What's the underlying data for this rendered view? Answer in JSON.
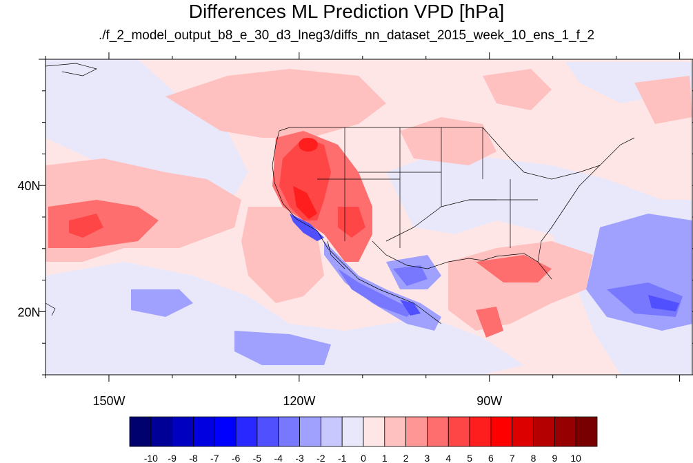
{
  "title": "Differences ML Prediction VPD [hPa]",
  "subtitle": "./f_2_model_output_b8_e_30_d3_lneg3/diffs_nn_dataset_2015_week_10_ens_1_f_2",
  "map": {
    "projection": "cylindrical-equidistant",
    "lon_range": [
      -160,
      -58
    ],
    "lat_range": [
      10,
      60
    ],
    "lon_ticks": [
      {
        "lon": -150,
        "label": "150W"
      },
      {
        "lon": -120,
        "label": "120W"
      },
      {
        "lon": -90,
        "label": "90W"
      }
    ],
    "lat_ticks": [
      {
        "lat": 40,
        "label": "40N"
      },
      {
        "lat": 20,
        "label": "20N"
      }
    ]
  },
  "colorbar": {
    "labels": [
      "-10",
      "-9",
      "-8",
      "-7",
      "-6",
      "-5",
      "-4",
      "-3",
      "-2",
      "-1",
      "0",
      "1",
      "2",
      "3",
      "4",
      "5",
      "6",
      "7",
      "8",
      "9",
      "10"
    ],
    "colors": [
      "#00006e",
      "#000096",
      "#0000c0",
      "#0000e0",
      "#0000ff",
      "#2828ff",
      "#5050ff",
      "#7878ff",
      "#a0a0ff",
      "#c8c8ff",
      "#e8e8fa",
      "#ffe6e6",
      "#ffc0c0",
      "#ff9696",
      "#ff6e6e",
      "#ff4646",
      "#ff1e1e",
      "#ff0000",
      "#dc0000",
      "#b40000",
      "#960000",
      "#780000"
    ]
  }
}
